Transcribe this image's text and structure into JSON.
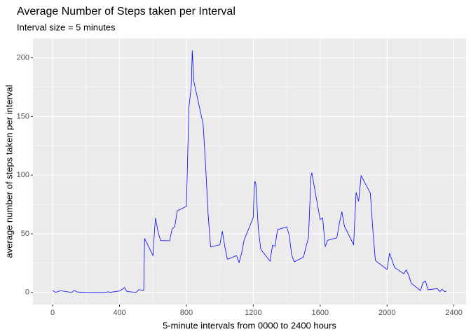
{
  "chart_data": {
    "type": "line",
    "title": "Average Number of Steps taken per Interval",
    "subtitle": "Interval size = 5 minutes",
    "x_label": "5-minute intervals from 0000 to 2400 hours",
    "y_label": "average number of steps taken per interval",
    "x": [
      0,
      15,
      30,
      45,
      100,
      115,
      130,
      145,
      200,
      215,
      230,
      245,
      300,
      315,
      330,
      345,
      400,
      415,
      430,
      445,
      500,
      515,
      530,
      545,
      550,
      600,
      610,
      615,
      630,
      645,
      700,
      715,
      730,
      745,
      800,
      815,
      830,
      835,
      845,
      900,
      915,
      930,
      945,
      1000,
      1015,
      1030,
      1045,
      1100,
      1115,
      1130,
      1145,
      1200,
      1205,
      1210,
      1215,
      1230,
      1245,
      1300,
      1315,
      1330,
      1345,
      1400,
      1415,
      1430,
      1445,
      1500,
      1515,
      1530,
      1545,
      1550,
      1600,
      1615,
      1630,
      1645,
      1700,
      1715,
      1730,
      1745,
      1800,
      1815,
      1830,
      1845,
      1900,
      1915,
      1930,
      1945,
      2000,
      2015,
      2030,
      2045,
      2100,
      2115,
      2130,
      2145,
      2200,
      2215,
      2230,
      2245,
      2300,
      2315,
      2330,
      2345,
      2355
    ],
    "series": [
      {
        "name": "steps",
        "color": "#0000ff",
        "values": [
          1.7,
          0.15,
          0.53,
          1.47,
          0.3,
          0,
          1.8,
          0.4,
          0,
          0,
          0,
          0,
          0,
          0,
          0.5,
          0.1,
          1.2,
          2.5,
          4.1,
          0.8,
          0,
          2.3,
          2.1,
          1.9,
          46,
          31.5,
          53.8,
          63.5,
          52.1,
          44.2,
          44,
          54.5,
          55.7,
          69.5,
          73.4,
          157.5,
          177.3,
          206.2,
          179.6,
          143.5,
          108.1,
          66.2,
          38.8,
          40.6,
          52.2,
          38.9,
          28.3,
          31.4,
          25.5,
          33.3,
          44.6,
          63.9,
          87.7,
          94.8,
          92.8,
          54.5,
          36.7,
          26.7,
          40.2,
          39.3,
          53.5,
          55.8,
          48.7,
          31.6,
          26.1,
          30,
          38.6,
          46.7,
          98.7,
          102.1,
          62.1,
          63.5,
          39,
          44.5,
          46.6,
          59.2,
          68.9,
          56.5,
          40.7,
          85.3,
          77.7,
          99.5,
          84.7,
          53.4,
          27.4,
          25.5,
          19.6,
          33.5,
          27.3,
          21.3,
          15.9,
          19.2,
          14.5,
          7.8,
          1.6,
          8.5,
          9.7,
          2.2,
          3.3,
          0.8,
          2.6,
          0.6,
          1.1
        ]
      }
    ],
    "xlim": [
      -117.75,
      2472.75
    ],
    "xticks": [
      0,
      400,
      800,
      1200,
      1600,
      2000,
      2400
    ],
    "ylim": [
      -10.3,
      216.5
    ],
    "yticks": [
      0,
      50,
      100,
      150,
      200
    ],
    "grid": true
  }
}
